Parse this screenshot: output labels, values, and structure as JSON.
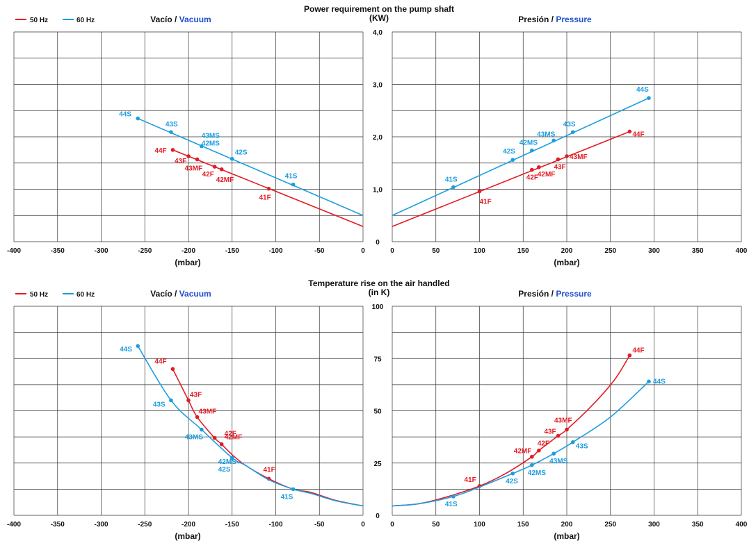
{
  "colors": {
    "hz50": "#e31b23",
    "hz60": "#1a9ee0",
    "vacuum_blue": "#1f4fd1"
  },
  "legend": {
    "hz50": "50 Hz",
    "hz60": "60 Hz"
  },
  "panel_titles": {
    "vacio": "Vacío",
    "vacuum": "Vacuum",
    "presion": "Presión",
    "pressure": "Pressure",
    "sep": " / "
  },
  "chart_data": [
    {
      "type": "line",
      "title": "Power requirement on the pump shaft",
      "ylabel": "(KW)",
      "xlabel": "(mbar)",
      "ylim": [
        0,
        4
      ],
      "yticks": [
        "0",
        "1,0",
        "2,0",
        "3,0",
        "4,0"
      ],
      "xticks_vacuum": [
        "-400",
        "-350",
        "-300",
        "-250",
        "-200",
        "-150",
        "-100",
        "-50",
        "0"
      ],
      "xticks_pressure": [
        "0",
        "50",
        "100",
        "150",
        "200",
        "250",
        "300",
        "350",
        "400"
      ],
      "vacuum": {
        "series": [
          {
            "name": "50 Hz",
            "line": [
              [
                -218,
                1.75
              ],
              [
                0,
                0.29
              ]
            ],
            "points": [
              {
                "x": -218,
                "y": 1.75,
                "label": "44F"
              },
              {
                "x": -200,
                "y": 1.63,
                "label": "43F"
              },
              {
                "x": -190,
                "y": 1.57,
                "label": "43MF"
              },
              {
                "x": -170,
                "y": 1.43,
                "label": "42F"
              },
              {
                "x": -162,
                "y": 1.38,
                "label": "42MF"
              },
              {
                "x": -108,
                "y": 1.01,
                "label": "41F"
              }
            ]
          },
          {
            "name": "60 Hz",
            "line": [
              [
                -258,
                2.35
              ],
              [
                0,
                0.5
              ]
            ],
            "points": [
              {
                "x": -258,
                "y": 2.35,
                "label": "44S"
              },
              {
                "x": -220,
                "y": 2.09,
                "label": "43S"
              },
              {
                "x": -185,
                "y": 1.82,
                "label": "43MS / 42MS"
              },
              {
                "x": -150,
                "y": 1.58,
                "label": "42S"
              },
              {
                "x": -80,
                "y": 1.09,
                "label": "41S"
              }
            ]
          }
        ]
      },
      "pressure": {
        "series": [
          {
            "name": "50 Hz",
            "line": [
              [
                0,
                0.29
              ],
              [
                272,
                2.1
              ]
            ],
            "points": [
              {
                "x": 100,
                "y": 0.96,
                "label": "41F"
              },
              {
                "x": 160,
                "y": 1.37,
                "label": "42F"
              },
              {
                "x": 168,
                "y": 1.42,
                "label": "42MF"
              },
              {
                "x": 190,
                "y": 1.57,
                "label": "43F"
              },
              {
                "x": 200,
                "y": 1.63,
                "label": "43MF"
              },
              {
                "x": 272,
                "y": 2.1,
                "label": "44F"
              }
            ]
          },
          {
            "name": "60 Hz",
            "line": [
              [
                0,
                0.5
              ],
              [
                294,
                2.74
              ]
            ],
            "points": [
              {
                "x": 70,
                "y": 1.04,
                "label": "41S"
              },
              {
                "x": 138,
                "y": 1.56,
                "label": "42S"
              },
              {
                "x": 160,
                "y": 1.74,
                "label": "42MS"
              },
              {
                "x": 185,
                "y": 1.93,
                "label": "43MS"
              },
              {
                "x": 207,
                "y": 2.09,
                "label": "43S"
              },
              {
                "x": 294,
                "y": 2.74,
                "label": "44S"
              }
            ]
          }
        ]
      }
    },
    {
      "type": "line",
      "title": "Temperature rise on the air handled",
      "ylabel": "(in K)",
      "xlabel": "(mbar)",
      "ylim": [
        0,
        100
      ],
      "yticks": [
        "0",
        "25",
        "50",
        "75",
        "100"
      ],
      "xticks_vacuum": [
        "-400",
        "-350",
        "-300",
        "-250",
        "-200",
        "-150",
        "-100",
        "-50",
        "0"
      ],
      "xticks_pressure": [
        "0",
        "50",
        "100",
        "150",
        "200",
        "250",
        "300",
        "350",
        "400"
      ],
      "vacuum": {
        "series": [
          {
            "name": "50 Hz",
            "curve": [
              [
                0,
                4.5
              ],
              [
                -30,
                7
              ],
              [
                -60,
                11
              ],
              [
                -80,
                12.5
              ],
              [
                -108,
                17.5
              ],
              [
                -135,
                24
              ],
              [
                -150,
                29
              ],
              [
                -162,
                34
              ],
              [
                -170,
                37
              ],
              [
                -190,
                47
              ],
              [
                -200,
                55
              ],
              [
                -218,
                70
              ]
            ],
            "points": [
              {
                "x": -218,
                "y": 70,
                "label": "44F"
              },
              {
                "x": -200,
                "y": 55,
                "label": "43F"
              },
              {
                "x": -190,
                "y": 47,
                "label": "43MF"
              },
              {
                "x": -170,
                "y": 37,
                "label": "42F"
              },
              {
                "x": -162,
                "y": 34,
                "label": "42MF"
              },
              {
                "x": -108,
                "y": 17.5,
                "label": "41F"
              }
            ]
          },
          {
            "name": "60 Hz",
            "curve": [
              [
                0,
                4.5
              ],
              [
                -30,
                6.8
              ],
              [
                -60,
                10.5
              ],
              [
                -80,
                12.5
              ],
              [
                -108,
                17
              ],
              [
                -135,
                24
              ],
              [
                -150,
                27.5
              ],
              [
                -185,
                41
              ],
              [
                -220,
                55
              ],
              [
                -258,
                81
              ]
            ],
            "points": [
              {
                "x": -258,
                "y": 81,
                "label": "44S"
              },
              {
                "x": -220,
                "y": 55,
                "label": "43S"
              },
              {
                "x": -185,
                "y": 41,
                "label": "43MS"
              },
              {
                "x": -150,
                "y": 27.5,
                "label": "42MS / 42S"
              },
              {
                "x": -80,
                "y": 12.5,
                "label": "41S"
              }
            ]
          }
        ]
      },
      "pressure": {
        "series": [
          {
            "name": "50 Hz",
            "curve": [
              [
                0,
                4.5
              ],
              [
                30,
                5.5
              ],
              [
                60,
                8.5
              ],
              [
                100,
                14
              ],
              [
                130,
                20
              ],
              [
                160,
                28
              ],
              [
                168,
                31
              ],
              [
                190,
                38
              ],
              [
                200,
                41
              ],
              [
                230,
                53
              ],
              [
                255,
                65
              ],
              [
                272,
                76.5
              ]
            ],
            "points": [
              {
                "x": 100,
                "y": 14,
                "label": "41F"
              },
              {
                "x": 160,
                "y": 28,
                "label": "42MF"
              },
              {
                "x": 168,
                "y": 31,
                "label": "42F"
              },
              {
                "x": 190,
                "y": 38,
                "label": "43F"
              },
              {
                "x": 200,
                "y": 41,
                "label": "43MF"
              },
              {
                "x": 272,
                "y": 76.5,
                "label": "44F"
              }
            ]
          },
          {
            "name": "60 Hz",
            "curve": [
              [
                0,
                4.5
              ],
              [
                30,
                5.5
              ],
              [
                70,
                9
              ],
              [
                100,
                13.5
              ],
              [
                138,
                20
              ],
              [
                160,
                24
              ],
              [
                185,
                29.5
              ],
              [
                207,
                35
              ],
              [
                250,
                47
              ],
              [
                294,
                64
              ]
            ],
            "points": [
              {
                "x": 70,
                "y": 9,
                "label": "41S"
              },
              {
                "x": 138,
                "y": 20,
                "label": "42S"
              },
              {
                "x": 160,
                "y": 24,
                "label": "42MS"
              },
              {
                "x": 185,
                "y": 29.5,
                "label": "43MS"
              },
              {
                "x": 207,
                "y": 35,
                "label": "43S"
              },
              {
                "x": 294,
                "y": 64,
                "label": "44S"
              }
            ]
          }
        ]
      }
    }
  ]
}
